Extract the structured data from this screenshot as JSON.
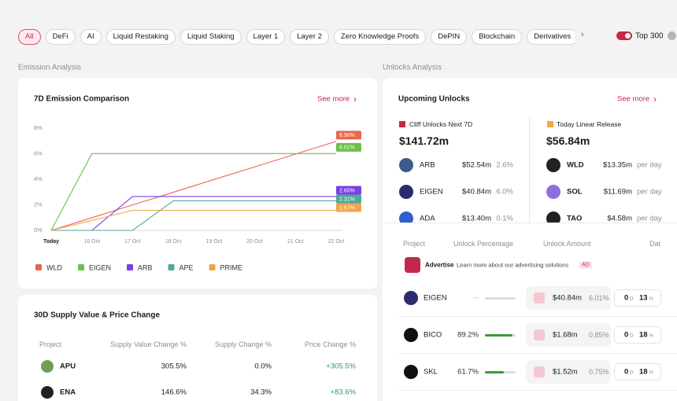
{
  "filters": {
    "tabs": [
      "All",
      "DeFi",
      "AI",
      "Liquid Restaking",
      "Liquid Staking",
      "Layer 1",
      "Layer 2",
      "Zero Knowledge Proofs",
      "DePIN",
      "Blockchain",
      "Derivatives",
      "Modul"
    ],
    "toggle_label": "Top 300"
  },
  "emission": {
    "section_title": "Emission Analysis",
    "card_title": "7D Emission Comparison",
    "see_more": "See more"
  },
  "chart_data": {
    "type": "line",
    "categories": [
      "Today",
      "16 Oct",
      "17 Oct",
      "18 Oct",
      "19 Oct",
      "20 Oct",
      "21 Oct",
      "22 Oct"
    ],
    "ylim": [
      0,
      8
    ],
    "yticks": [
      {
        "value": 0,
        "label": "0%"
      },
      {
        "value": 2,
        "label": "2%"
      },
      {
        "value": 4,
        "label": "4%"
      },
      {
        "value": 6,
        "label": "6%"
      },
      {
        "value": 8,
        "label": "8%"
      }
    ],
    "grid": false,
    "legend": "bottom",
    "series": [
      {
        "name": "WLD",
        "color": "#e8694a",
        "values": [
          0,
          0.99,
          1.99,
          2.98,
          3.98,
          4.97,
          5.97,
          6.96
        ],
        "value_labels": [
          null,
          null,
          null,
          null,
          null,
          null,
          null,
          "6.96%"
        ]
      },
      {
        "name": "EIGEN",
        "color": "#6cbf4b",
        "values": [
          0,
          6.01,
          6.01,
          6.01,
          6.01,
          6.01,
          6.01,
          6.01
        ],
        "value_labels": [
          null,
          null,
          null,
          null,
          null,
          null,
          null,
          "6.01%"
        ]
      },
      {
        "name": "ARB",
        "color": "#7b3fe4",
        "values": [
          0,
          0,
          2.65,
          2.65,
          2.65,
          2.65,
          2.65,
          2.65
        ],
        "value_labels": [
          null,
          null,
          null,
          null,
          null,
          null,
          null,
          "2.65%"
        ]
      },
      {
        "name": "APE",
        "color": "#4fa89a",
        "values": [
          0,
          0,
          0,
          2.31,
          2.31,
          2.31,
          2.31,
          2.31
        ],
        "value_labels": [
          null,
          null,
          null,
          null,
          null,
          null,
          null,
          "2.31%"
        ]
      },
      {
        "name": "PRIME",
        "color": "#f0a54a",
        "values": [
          0,
          0.78,
          1.57,
          1.57,
          1.57,
          1.57,
          1.57,
          1.57
        ],
        "value_labels": [
          null,
          null,
          null,
          null,
          null,
          null,
          null,
          "1.57%"
        ]
      }
    ]
  },
  "supply": {
    "title": "30D Supply Value & Price Change",
    "headers": [
      "Project",
      "Supply Value Change %",
      "Supply Change %",
      "Price Change %"
    ],
    "rows": [
      [
        "APU",
        "305.5%",
        "0.0%",
        "+305.5%"
      ],
      [
        "ENA",
        "146.6%",
        "34.3%",
        "+83.6%"
      ]
    ]
  },
  "unlocks": {
    "section_title": "Unlocks Analysis",
    "card_title": "Upcoming Unlocks",
    "see_more": "See more",
    "cliff": {
      "label": "Cliff Unlocks Next 7D",
      "total": "$141.72m",
      "rows": [
        [
          "ARB",
          "$52.54m",
          "2.6%"
        ],
        [
          "EIGEN",
          "$40.84m",
          "6.0%"
        ],
        [
          "ADA",
          "$13.40m",
          "0.1%"
        ]
      ]
    },
    "linear": {
      "label": "Today Linear Release",
      "total": "$56.84m",
      "rows": [
        [
          "WLD",
          "$13.35m",
          "per day"
        ],
        [
          "SOL",
          "$11.69m",
          "per day"
        ],
        [
          "TAO",
          "$4.58m",
          "per day"
        ]
      ]
    },
    "table": {
      "headers": [
        "Project",
        "Unlock Percentage",
        "Unlock Amount",
        "Dat"
      ],
      "ad": {
        "title": "Advertise",
        "text": "Learn more about our advertising solutions",
        "badge": "AD"
      },
      "day_unit": "D",
      "hour_unit": "H",
      "rows": [
        {
          "project": "EIGEN",
          "percentage": "--",
          "progress": null,
          "amount": "$40.84m",
          "share": "6.01%",
          "days": "0",
          "hours": "13"
        },
        {
          "project": "BICO",
          "percentage": "89.2%",
          "progress": 89.2,
          "amount": "$1.68m",
          "share": "0.85%",
          "days": "0",
          "hours": "18"
        },
        {
          "project": "SKL",
          "percentage": "61.7%",
          "progress": 61.7,
          "amount": "$1.52m",
          "share": "0.75%",
          "days": "0",
          "hours": "18"
        }
      ]
    }
  }
}
